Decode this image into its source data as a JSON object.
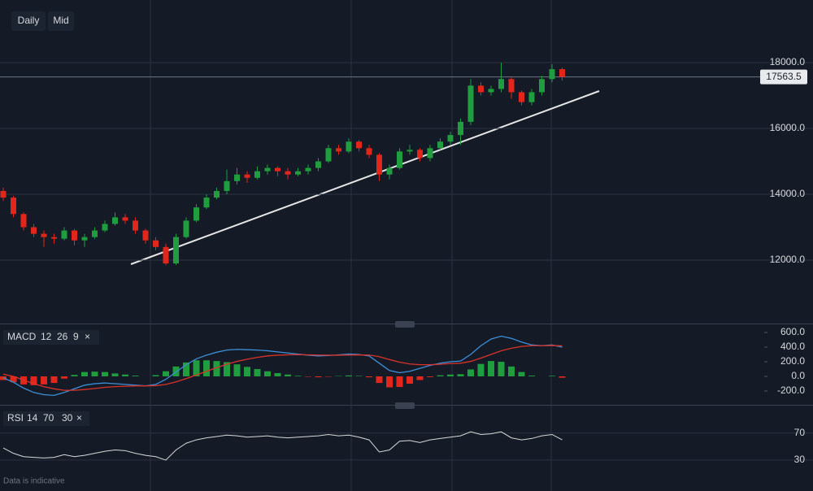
{
  "toolbar": {
    "buttons": [
      "Daily",
      "Mid"
    ]
  },
  "chart_data": [
    {
      "type": "candlestick",
      "candles": [
        [
          14100,
          14200,
          13800,
          13900
        ],
        [
          13900,
          13950,
          13300,
          13400
        ],
        [
          13400,
          13450,
          12900,
          13000
        ],
        [
          13000,
          13100,
          12700,
          12800
        ],
        [
          12800,
          12900,
          12400,
          12700
        ],
        [
          12700,
          12800,
          12500,
          12650
        ],
        [
          12650,
          13000,
          12600,
          12900
        ],
        [
          12900,
          12950,
          12450,
          12600
        ],
        [
          12600,
          12800,
          12400,
          12700
        ],
        [
          12700,
          13000,
          12650,
          12900
        ],
        [
          12900,
          13200,
          12850,
          13100
        ],
        [
          13100,
          13450,
          13050,
          13300
        ],
        [
          13300,
          13400,
          13100,
          13200
        ],
        [
          13200,
          13300,
          12800,
          12900
        ],
        [
          12900,
          12950,
          12500,
          12600
        ],
        [
          12600,
          12700,
          12300,
          12400
        ],
        [
          12400,
          12500,
          11850,
          11900
        ],
        [
          11900,
          12800,
          11850,
          12700
        ],
        [
          12700,
          13300,
          12650,
          13200
        ],
        [
          13200,
          13700,
          13150,
          13600
        ],
        [
          13600,
          14000,
          13550,
          13900
        ],
        [
          13900,
          14200,
          13850,
          14100
        ],
        [
          14100,
          14750,
          14000,
          14400
        ],
        [
          14400,
          14800,
          14300,
          14600
        ],
        [
          14600,
          14700,
          14350,
          14500
        ],
        [
          14500,
          14850,
          14450,
          14700
        ],
        [
          14700,
          14900,
          14600,
          14800
        ],
        [
          14800,
          14850,
          14550,
          14700
        ],
        [
          14700,
          14800,
          14450,
          14600
        ],
        [
          14600,
          14800,
          14550,
          14700
        ],
        [
          14700,
          14900,
          14600,
          14800
        ],
        [
          14800,
          15100,
          14700,
          15000
        ],
        [
          15000,
          15500,
          14950,
          15400
        ],
        [
          15400,
          15500,
          15200,
          15300
        ],
        [
          15300,
          15700,
          15250,
          15600
        ],
        [
          15600,
          15650,
          15300,
          15400
        ],
        [
          15400,
          15500,
          15100,
          15200
        ],
        [
          15200,
          15250,
          14400,
          14600
        ],
        [
          14600,
          14900,
          14450,
          14800
        ],
        [
          14800,
          15400,
          14750,
          15300
        ],
        [
          15300,
          15500,
          15200,
          15350
        ],
        [
          15350,
          15400,
          15000,
          15100
        ],
        [
          15100,
          15500,
          15000,
          15400
        ],
        [
          15400,
          15700,
          15350,
          15600
        ],
        [
          15600,
          15900,
          15500,
          15800
        ],
        [
          15800,
          16300,
          15500,
          16200
        ],
        [
          16200,
          17500,
          16100,
          17300
        ],
        [
          17300,
          17400,
          17000,
          17100
        ],
        [
          17100,
          17300,
          17000,
          17200
        ],
        [
          17200,
          18000,
          17100,
          17500
        ],
        [
          17500,
          17550,
          16900,
          17100
        ],
        [
          17100,
          17150,
          16700,
          16800
        ],
        [
          16800,
          17200,
          16700,
          17100
        ],
        [
          17100,
          17600,
          17000,
          17500
        ],
        [
          17500,
          17950,
          17400,
          17800
        ],
        [
          17800,
          17850,
          17450,
          17563.5
        ]
      ],
      "up_color": "#1f9d3f",
      "down_color": "#e3261c",
      "last_price": 17563.5,
      "ylim": [
        10074,
        19901
      ],
      "yticks": [
        {
          "value": 12000,
          "label": "12000.0"
        },
        {
          "value": 14000,
          "label": "14000.0"
        },
        {
          "value": 16000,
          "label": "16000.0"
        },
        {
          "value": 18000,
          "label": "18000.0"
        }
      ],
      "grid": true
    },
    {
      "type": "macd",
      "name": "MACD",
      "params": [
        12,
        26,
        9
      ],
      "close": "×",
      "series": [
        {
          "color": "#3d8fd8",
          "values": [
            -20,
            -80,
            -160,
            -220,
            -250,
            -260,
            -220,
            -170,
            -120,
            -100,
            -90,
            -100,
            -110,
            -120,
            -130,
            -110,
            -40,
            60,
            160,
            240,
            290,
            330,
            360,
            370,
            365,
            360,
            350,
            335,
            320,
            305,
            290,
            280,
            285,
            295,
            305,
            300,
            280,
            180,
            80,
            50,
            70,
            110,
            150,
            180,
            200,
            210,
            300,
            420,
            510,
            550,
            520,
            470,
            430,
            420,
            430,
            400
          ]
        },
        {
          "color": "#d9322a",
          "values": [
            30,
            0,
            -50,
            -100,
            -140,
            -170,
            -190,
            -190,
            -180,
            -165,
            -150,
            -140,
            -135,
            -130,
            -130,
            -127,
            -110,
            -75,
            -30,
            20,
            70,
            120,
            165,
            205,
            235,
            260,
            280,
            290,
            295,
            297,
            295,
            292,
            290,
            290,
            292,
            294,
            292,
            270,
            230,
            195,
            170,
            160,
            160,
            165,
            175,
            180,
            205,
            250,
            300,
            350,
            385,
            410,
            420,
            420,
            422,
            418
          ]
        }
      ],
      "histogram": [
        -50,
        -80,
        -110,
        -120,
        -110,
        -90,
        -30,
        20,
        60,
        65,
        60,
        40,
        25,
        10,
        0,
        17,
        70,
        135,
        190,
        220,
        220,
        210,
        195,
        165,
        130,
        100,
        70,
        45,
        25,
        8,
        -5,
        -12,
        -5,
        5,
        13,
        6,
        -12,
        -90,
        -150,
        -145,
        -100,
        -50,
        -10,
        15,
        25,
        30,
        95,
        170,
        210,
        200,
        135,
        60,
        10,
        0,
        8,
        -18
      ],
      "ylim": [
        -389,
        667
      ],
      "yticks": [
        {
          "value": -200,
          "label": "-200.0"
        },
        {
          "value": 0,
          "label": "0.0"
        },
        {
          "value": 200,
          "label": "200.0"
        },
        {
          "value": 400,
          "label": "400.0"
        },
        {
          "value": 600,
          "label": "600.0"
        }
      ]
    },
    {
      "type": "line",
      "name": "RSI",
      "params": [
        14,
        70,
        30
      ],
      "close": "×",
      "color": "#d8d8d8",
      "values": [
        48,
        40,
        35,
        34,
        33,
        34,
        38,
        35,
        37,
        40,
        43,
        45,
        44,
        40,
        37,
        35,
        30,
        45,
        55,
        60,
        63,
        65,
        67,
        66,
        64,
        65,
        66,
        64,
        63,
        64,
        65,
        66,
        68,
        66,
        67,
        64,
        60,
        42,
        45,
        58,
        59,
        56,
        60,
        62,
        64,
        66,
        72,
        68,
        69,
        72,
        63,
        60,
        62,
        66,
        68,
        60
      ],
      "ylim": [
        -16,
        106
      ],
      "yticks": [
        30,
        70
      ]
    }
  ],
  "footer": "Data is indicative"
}
